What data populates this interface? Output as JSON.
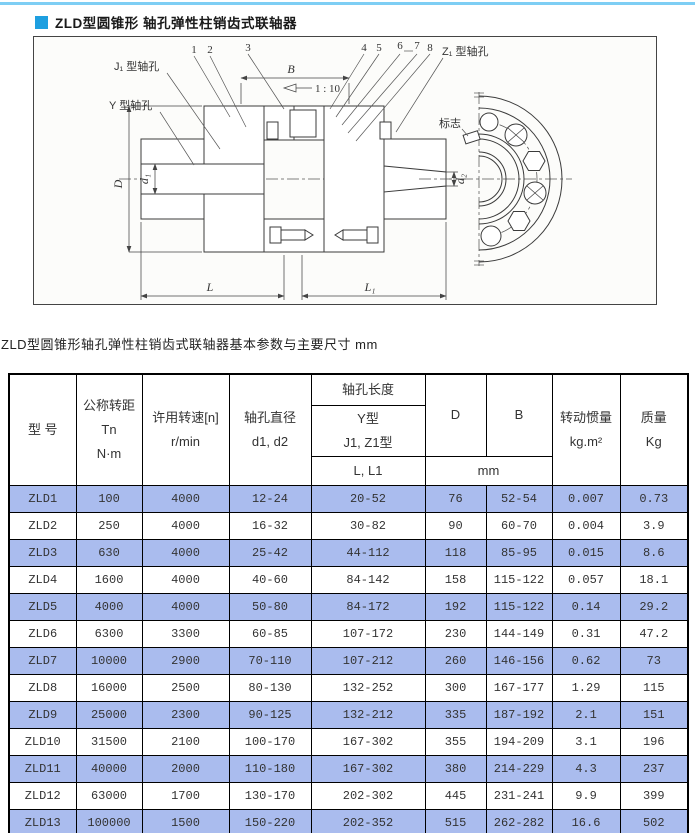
{
  "page": {
    "topline_color": "#7ECEF4",
    "bullet_color": "#1E9FE0",
    "title": "ZLD型圆锥形 轴孔弹性柱销齿式联轴器",
    "caption": "ZLD型圆锥形轴孔弹性柱销齿式联轴器基本参数与主要尺寸 mm",
    "stripe_color": "#AABCEE"
  },
  "drawing": {
    "labels": {
      "j1_bore": "J₁ 型轴孔",
      "y_bore": "Y 型轴孔",
      "z1_bore": "Z₁ 型轴孔",
      "mark": "标志",
      "taper": "1 : 10",
      "dim_B": "B",
      "dim_D": "D",
      "dim_d1": "d₁",
      "dim_d2": "d₂",
      "dim_L": "L",
      "dim_L1": "L₁"
    },
    "part_numbers": [
      "1",
      "2",
      "3",
      "4",
      "5",
      "6",
      "7",
      "8"
    ]
  },
  "table": {
    "header": {
      "model": "型  号",
      "torque": "公称转距\nTn\nN·m",
      "speed": "许用转速[n]\nr/min",
      "bore_diameter": "轴孔直径\nd1, d2",
      "bore_length": "轴孔长度",
      "bore_length_sub": "Y型\nJ1, Z1型",
      "bore_length_sub2": "L, L1",
      "D": "D",
      "B": "B",
      "unit_mm": "mm",
      "inertia": "转动惯量\nkg.m²",
      "mass": "质量\nKg"
    },
    "rows": [
      [
        "ZLD1",
        "100",
        "4000",
        "12-24",
        "20-52",
        "76",
        "52-54",
        "0.007",
        "0.73"
      ],
      [
        "ZLD2",
        "250",
        "4000",
        "16-32",
        "30-82",
        "90",
        "60-70",
        "0.004",
        "3.9"
      ],
      [
        "ZLD3",
        "630",
        "4000",
        "25-42",
        "44-112",
        "118",
        "85-95",
        "0.015",
        "8.6"
      ],
      [
        "ZLD4",
        "1600",
        "4000",
        "40-60",
        "84-142",
        "158",
        "115-122",
        "0.057",
        "18.1"
      ],
      [
        "ZLD5",
        "4000",
        "4000",
        "50-80",
        "84-172",
        "192",
        "115-122",
        "0.14",
        "29.2"
      ],
      [
        "ZLD6",
        "6300",
        "3300",
        "60-85",
        "107-172",
        "230",
        "144-149",
        "0.31",
        "47.2"
      ],
      [
        "ZLD7",
        "10000",
        "2900",
        "70-110",
        "107-212",
        "260",
        "146-156",
        "0.62",
        "73"
      ],
      [
        "ZLD8",
        "16000",
        "2500",
        "80-130",
        "132-252",
        "300",
        "167-177",
        "1.29",
        "115"
      ],
      [
        "ZLD9",
        "25000",
        "2300",
        "90-125",
        "132-212",
        "335",
        "187-192",
        "2.1",
        "151"
      ],
      [
        "ZLD10",
        "31500",
        "2100",
        "100-170",
        "167-302",
        "355",
        "194-209",
        "3.1",
        "196"
      ],
      [
        "ZLD11",
        "40000",
        "2000",
        "110-180",
        "167-302",
        "380",
        "214-229",
        "4.3",
        "237"
      ],
      [
        "ZLD12",
        "63000",
        "1700",
        "130-170",
        "202-302",
        "445",
        "231-241",
        "9.9",
        "399"
      ],
      [
        "ZLD13",
        "100000",
        "1500",
        "150-220",
        "202-352",
        "515",
        "262-282",
        "16.6",
        "502"
      ]
    ]
  }
}
